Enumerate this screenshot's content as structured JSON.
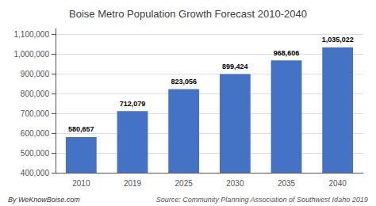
{
  "chart_data": {
    "type": "bar",
    "title": "Boise Metro Population Growth Forecast 2010-2040",
    "categories": [
      "2010",
      "2019",
      "2025",
      "2030",
      "2035",
      "2040"
    ],
    "values": [
      580657,
      712079,
      823056,
      899424,
      968606,
      1035022
    ],
    "value_labels": [
      "580,657",
      "712,079",
      "823,056",
      "899,424",
      "968,606",
      "1,035,022"
    ],
    "data_labels": true,
    "color": "#4472C4",
    "ylim": [
      400000,
      1130000
    ],
    "yticks": [
      {
        "value": 400000,
        "label": "400,000"
      },
      {
        "value": 500000,
        "label": "500,000"
      },
      {
        "value": 600000,
        "label": "600,000"
      },
      {
        "value": 700000,
        "label": "700,000"
      },
      {
        "value": 800000,
        "label": "800,000"
      },
      {
        "value": 900000,
        "label": "900,000"
      },
      {
        "value": 1000000,
        "label": "1,000,000"
      },
      {
        "value": 1100000,
        "label": "1,100,000"
      }
    ],
    "grid": true,
    "annotations": [
      "By WeKnowBoise.com",
      "Source: Community Planning Association of Southwest Idaho 2019"
    ]
  }
}
